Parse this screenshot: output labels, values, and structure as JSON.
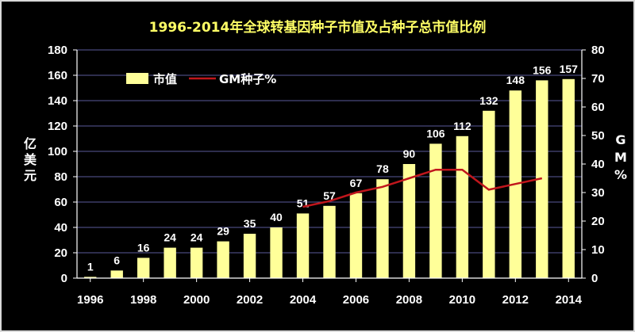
{
  "chart_data": {
    "type": "bar",
    "title": "1996-2014年全球转基因种子市值及占种子总市值比例",
    "categories": [
      "1996",
      "1997",
      "1998",
      "1999",
      "2000",
      "2001",
      "2002",
      "2003",
      "2004",
      "2005",
      "2006",
      "2007",
      "2008",
      "2009",
      "2010",
      "2011",
      "2012",
      "2013",
      "2014"
    ],
    "x_tick_labels": [
      "1996",
      "1998",
      "2000",
      "2002",
      "2004",
      "2006",
      "2008",
      "2010",
      "2012",
      "2014"
    ],
    "series": [
      {
        "name": "市值",
        "type": "bar",
        "axis": "left",
        "color": "#ffff99",
        "values": [
          1,
          6,
          16,
          24,
          24,
          29,
          35,
          40,
          51,
          57,
          67,
          78,
          90,
          106,
          112,
          132,
          148,
          156,
          157
        ],
        "labels": [
          "1",
          "6",
          "16",
          "24",
          "24",
          "29",
          "35",
          "40",
          "51",
          "57",
          "67",
          "78",
          "90",
          "106",
          "112",
          "132",
          "148",
          "156",
          "157"
        ]
      },
      {
        "name": "GM种子%",
        "type": "line",
        "axis": "right",
        "color": "#c0161c",
        "x": [
          "2004",
          "2005",
          "2006",
          "2007",
          "2008",
          "2009",
          "2010",
          "2011",
          "2012",
          "2013"
        ],
        "values": [
          25,
          27,
          30,
          32,
          35,
          38,
          38,
          31,
          33,
          35
        ]
      }
    ],
    "ylabel": "亿美元",
    "y2label": "GM%",
    "ylim": [
      0,
      180
    ],
    "y_ticks": [
      "0",
      "20",
      "40",
      "60",
      "80",
      "100",
      "120",
      "140",
      "160",
      "180"
    ],
    "y2lim": [
      0,
      80
    ],
    "y2_ticks": [
      "0",
      "10",
      "20",
      "30",
      "40",
      "50",
      "60",
      "70",
      "80"
    ],
    "grid": true,
    "legend": "top-left",
    "background": "#000000",
    "gridline_color": "#5a5a9a",
    "title_color": "#ffff66",
    "text_color": "#ffffff"
  }
}
